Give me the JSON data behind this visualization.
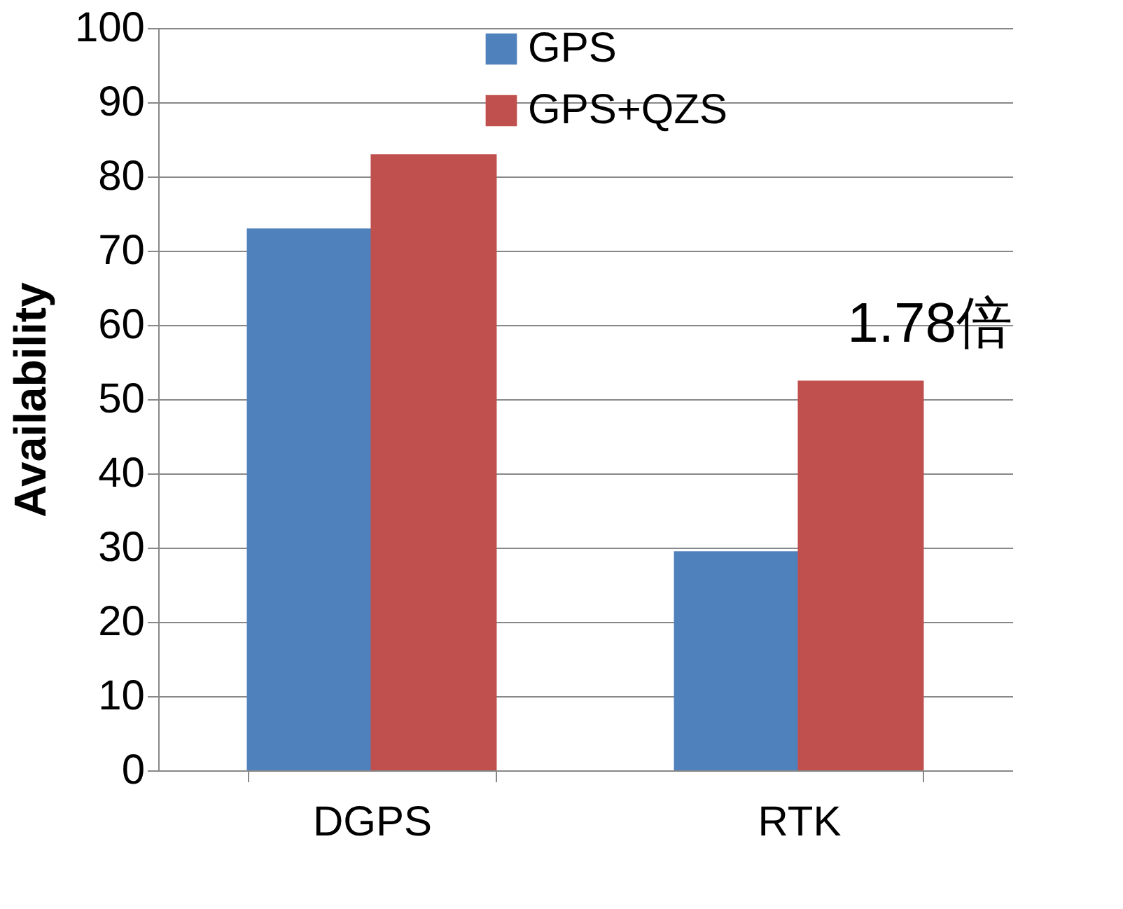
{
  "chart_data": {
    "type": "bar",
    "ylabel": "Availability",
    "categories": [
      "DGPS",
      "RTK"
    ],
    "series": [
      {
        "name": "GPS",
        "color": "#4f81bd",
        "values": [
          73,
          29.5
        ]
      },
      {
        "name": "GPS+QZS",
        "color": "#c0504d",
        "values": [
          83,
          52.5
        ]
      }
    ],
    "ylim": [
      0,
      100
    ],
    "yticks": [
      0,
      10,
      20,
      30,
      40,
      50,
      60,
      70,
      80,
      90,
      100
    ],
    "grid": "y",
    "legend": "top",
    "annotations": [
      "1.78倍"
    ]
  }
}
